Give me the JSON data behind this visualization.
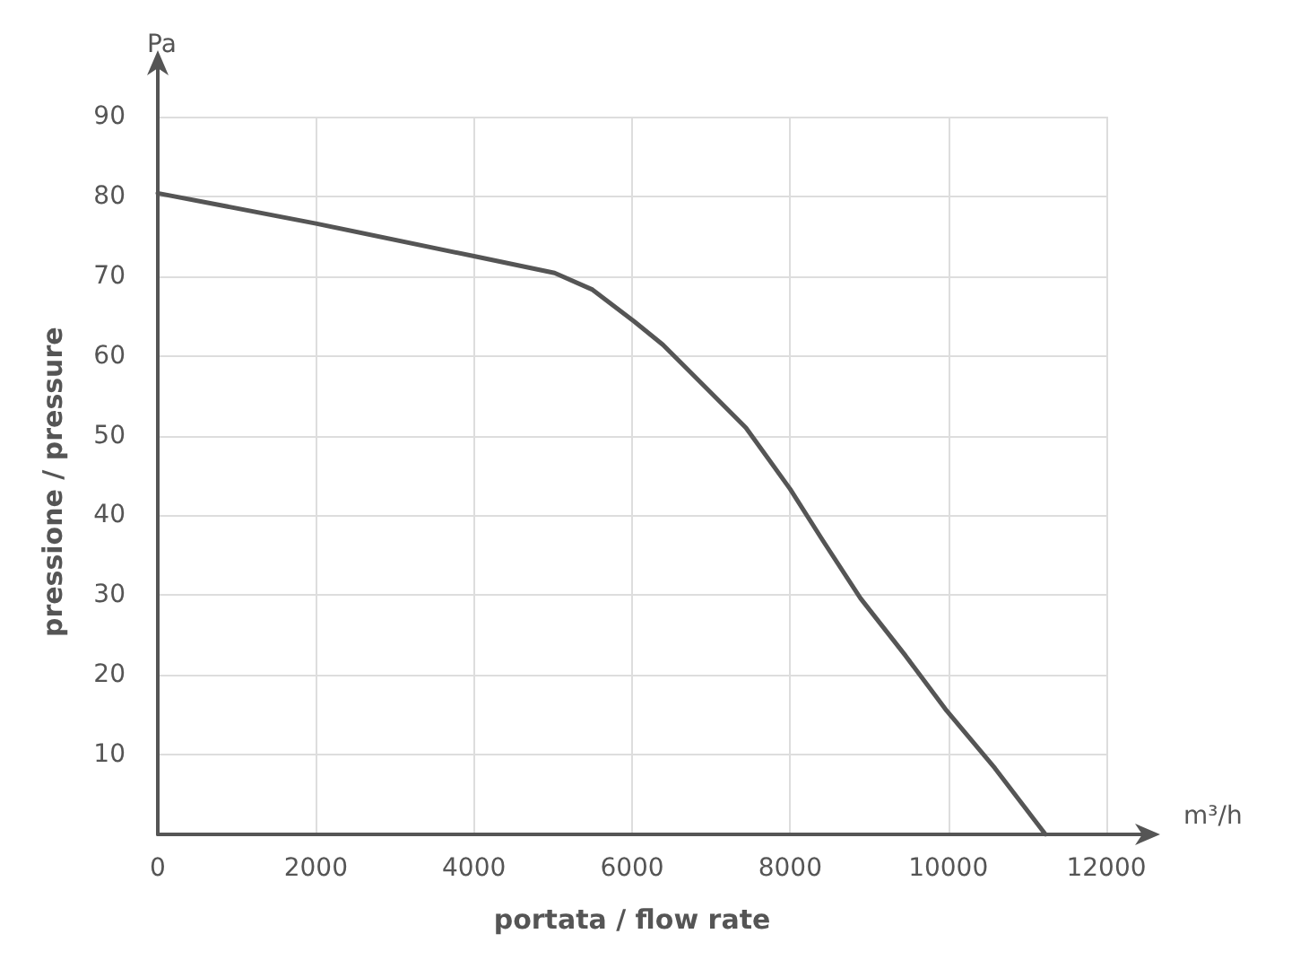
{
  "chart_data": {
    "type": "line",
    "xlabel": "portata / flow rate",
    "ylabel": "pressione / pressure",
    "annotations": [
      "Pa",
      "m³/h"
    ],
    "x": [
      0,
      2000,
      4000,
      5020,
      5500,
      6030,
      6390,
      7440,
      8000,
      8410,
      8890,
      9460,
      9980,
      10590,
      11230
    ],
    "series": [
      {
        "color": "#555555",
        "values": [
          80.4,
          76.6,
          72.5,
          70.4,
          68.3,
          64.3,
          61.4,
          51.0,
          43.3,
          36.9,
          29.6,
          22.4,
          15.5,
          8.3,
          0
        ]
      }
    ],
    "xlim": [
      0,
      12000
    ],
    "xticks": [
      0,
      2000,
      4000,
      6000,
      8000,
      10000,
      12000
    ],
    "ylim": [
      0,
      90
    ],
    "yticks": [
      {
        "value": 0,
        "label": null
      },
      10,
      20,
      30,
      40,
      50,
      60,
      70,
      80,
      90
    ],
    "grid": true,
    "marker": "none",
    "line_style": "solid"
  }
}
